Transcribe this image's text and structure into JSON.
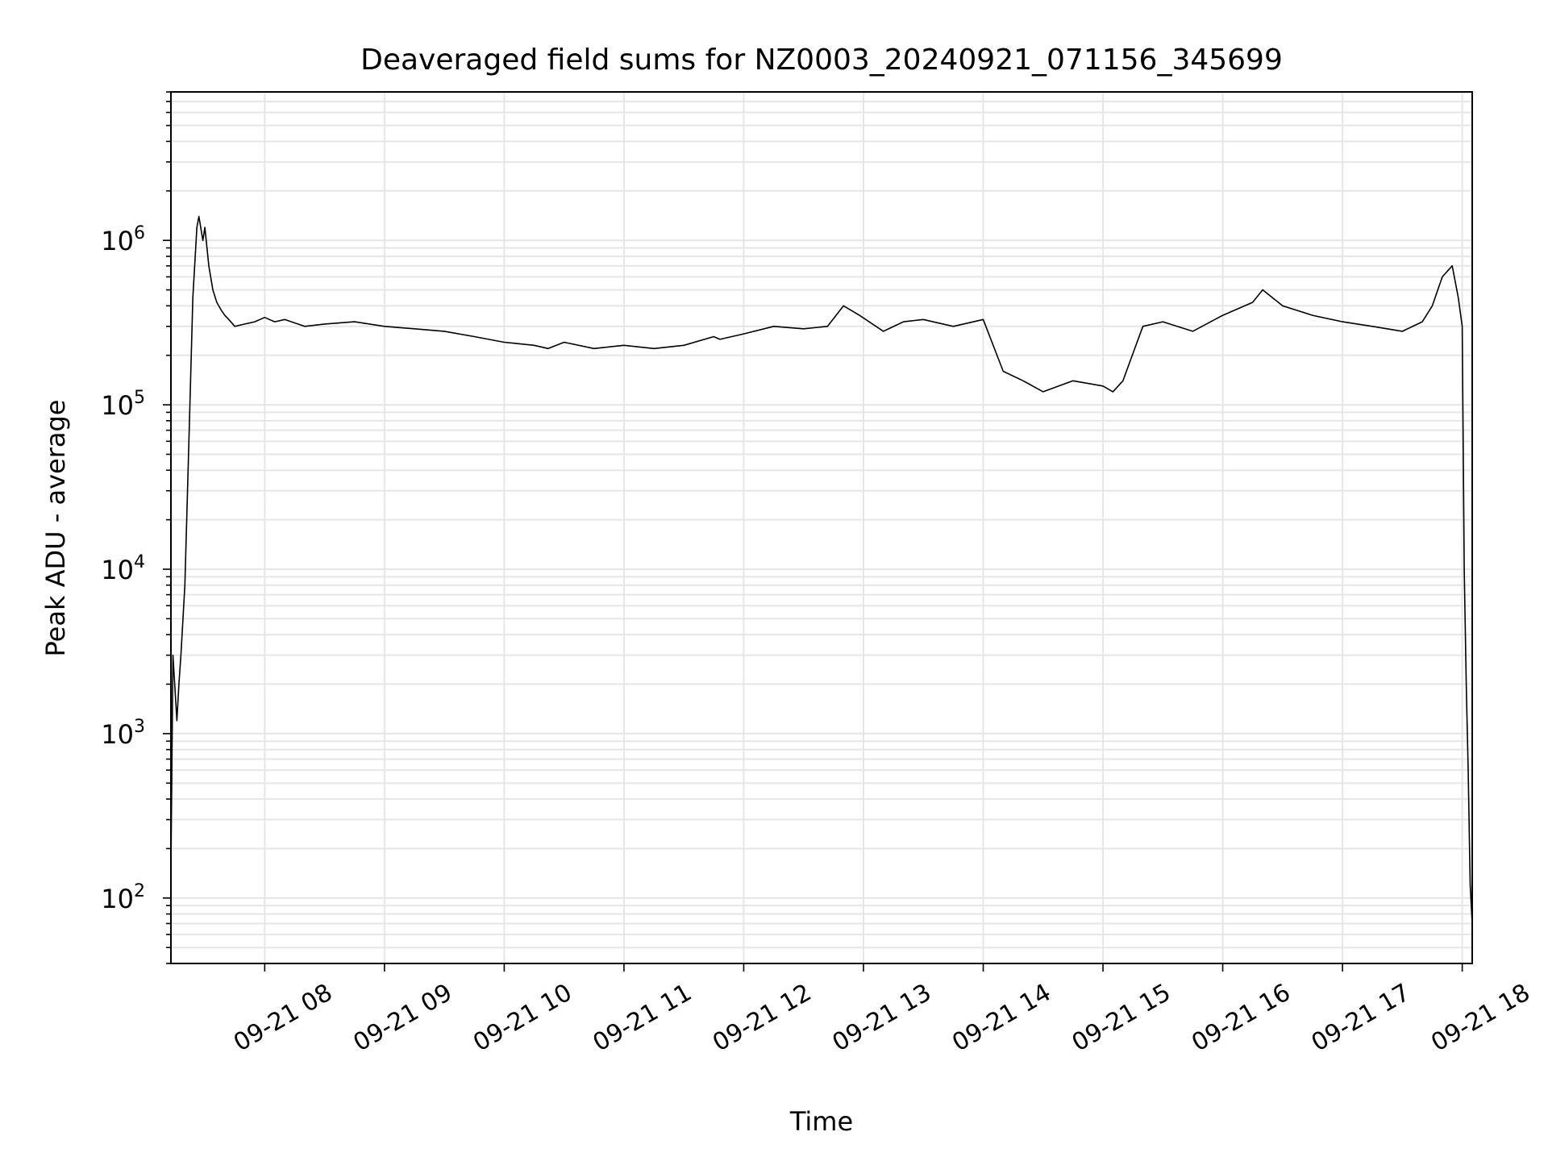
{
  "chart_data": {
    "type": "line",
    "title": "Deaveraged field sums for NZ0003_20240921_071156_345699",
    "xlabel": "Time",
    "ylabel": "Peak ADU - average",
    "yscale": "log",
    "ylim": [
      40,
      8000000
    ],
    "xlim": [
      "2024-09-21 07:13",
      "2024-09-21 18:05"
    ],
    "grid": true,
    "legend": "none",
    "colors": {
      "line": "#000000",
      "grid": "#e6e6e6",
      "axes": "#000000"
    },
    "x_ticks": [
      {
        "label": "09-21 08",
        "time": "2024-09-21 08:00"
      },
      {
        "label": "09-21 09",
        "time": "2024-09-21 09:00"
      },
      {
        "label": "09-21 10",
        "time": "2024-09-21 10:00"
      },
      {
        "label": "09-21 11",
        "time": "2024-09-21 11:00"
      },
      {
        "label": "09-21 12",
        "time": "2024-09-21 12:00"
      },
      {
        "label": "09-21 13",
        "time": "2024-09-21 13:00"
      },
      {
        "label": "09-21 14",
        "time": "2024-09-21 14:00"
      },
      {
        "label": "09-21 15",
        "time": "2024-09-21 15:00"
      },
      {
        "label": "09-21 16",
        "time": "2024-09-21 16:00"
      },
      {
        "label": "09-21 17",
        "time": "2024-09-21 17:00"
      },
      {
        "label": "09-21 18",
        "time": "2024-09-21 18:00"
      }
    ],
    "y_ticks": [
      {
        "base": "10",
        "exp": "2",
        "value": 100
      },
      {
        "base": "10",
        "exp": "3",
        "value": 1000
      },
      {
        "base": "10",
        "exp": "4",
        "value": 10000
      },
      {
        "base": "10",
        "exp": "5",
        "value": 100000
      },
      {
        "base": "10",
        "exp": "6",
        "value": 1000000
      }
    ],
    "series": [
      {
        "x": [
          "2024-09-21 07:13",
          "2024-09-21 07:14",
          "2024-09-21 07:16",
          "2024-09-21 07:17",
          "2024-09-21 07:18",
          "2024-09-21 07:20",
          "2024-09-21 07:22",
          "2024-09-21 07:24",
          "2024-09-21 07:26",
          "2024-09-21 07:27",
          "2024-09-21 07:29",
          "2024-09-21 07:30",
          "2024-09-21 07:32",
          "2024-09-21 07:34",
          "2024-09-21 07:36",
          "2024-09-21 07:38",
          "2024-09-21 07:40",
          "2024-09-21 07:42",
          "2024-09-21 07:45",
          "2024-09-21 07:50",
          "2024-09-21 07:55",
          "2024-09-21 08:00",
          "2024-09-21 08:05",
          "2024-09-21 08:10",
          "2024-09-21 08:20",
          "2024-09-21 08:30",
          "2024-09-21 08:45",
          "2024-09-21 09:00",
          "2024-09-21 09:15",
          "2024-09-21 09:30",
          "2024-09-21 09:45",
          "2024-09-21 10:00",
          "2024-09-21 10:15",
          "2024-09-21 10:22",
          "2024-09-21 10:30",
          "2024-09-21 10:45",
          "2024-09-21 11:00",
          "2024-09-21 11:15",
          "2024-09-21 11:30",
          "2024-09-21 11:45",
          "2024-09-21 11:48",
          "2024-09-21 12:00",
          "2024-09-21 12:15",
          "2024-09-21 12:30",
          "2024-09-21 12:42",
          "2024-09-21 12:50",
          "2024-09-21 12:58",
          "2024-09-21 13:10",
          "2024-09-21 13:20",
          "2024-09-21 13:30",
          "2024-09-21 13:45",
          "2024-09-21 14:00",
          "2024-09-21 14:10",
          "2024-09-21 14:20",
          "2024-09-21 14:30",
          "2024-09-21 14:45",
          "2024-09-21 15:00",
          "2024-09-21 15:05",
          "2024-09-21 15:10",
          "2024-09-21 15:20",
          "2024-09-21 15:30",
          "2024-09-21 15:45",
          "2024-09-21 16:00",
          "2024-09-21 16:15",
          "2024-09-21 16:20",
          "2024-09-21 16:30",
          "2024-09-21 16:45",
          "2024-09-21 17:00",
          "2024-09-21 17:15",
          "2024-09-21 17:30",
          "2024-09-21 17:40",
          "2024-09-21 17:45",
          "2024-09-21 17:50",
          "2024-09-21 17:55",
          "2024-09-21 17:58",
          "2024-09-21 18:00",
          "2024-09-21 18:01",
          "2024-09-21 18:02",
          "2024-09-21 18:03",
          "2024-09-21 18:04",
          "2024-09-21 18:05"
        ],
        "y": [
          150,
          3000,
          1200,
          2000,
          3000,
          8000,
          60000,
          450000,
          1200000,
          1400000,
          1000000,
          1200000,
          700000,
          500000,
          420000,
          380000,
          350000,
          330000,
          300000,
          310000,
          320000,
          340000,
          320000,
          330000,
          300000,
          310000,
          320000,
          300000,
          290000,
          280000,
          260000,
          240000,
          230000,
          220000,
          240000,
          220000,
          230000,
          220000,
          230000,
          260000,
          250000,
          270000,
          300000,
          290000,
          300000,
          400000,
          350000,
          280000,
          320000,
          330000,
          300000,
          330000,
          160000,
          140000,
          120000,
          140000,
          130000,
          120000,
          140000,
          300000,
          320000,
          280000,
          350000,
          420000,
          500000,
          400000,
          350000,
          320000,
          300000,
          280000,
          320000,
          400000,
          600000,
          700000,
          450000,
          300000,
          10000,
          2000,
          600,
          120,
          70
        ]
      }
    ]
  }
}
